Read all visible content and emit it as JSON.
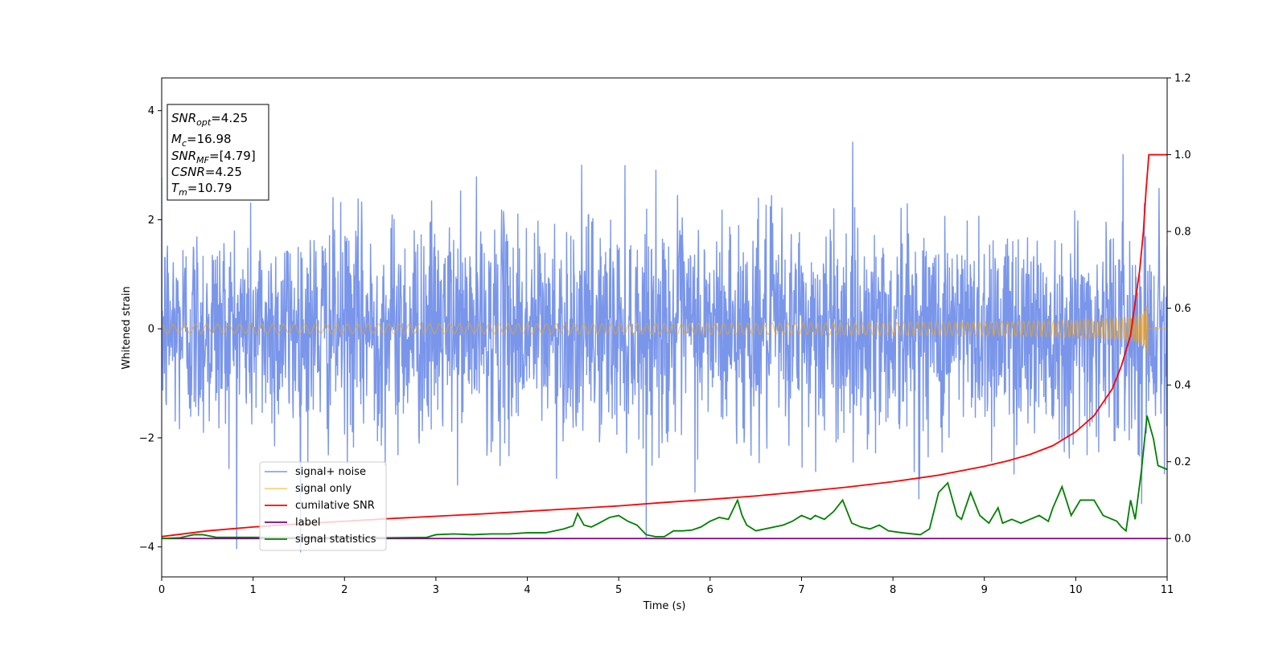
{
  "chart_data": {
    "type": "line",
    "xlabel": "Time (s)",
    "ylabel_left": "Whitened strain",
    "ylabel_right": "",
    "xlim": [
      0,
      11
    ],
    "ylim_left": [
      -4.55,
      4.6
    ],
    "ylim_right": [
      -0.1,
      1.2
    ],
    "x_ticks": [
      "0",
      "1",
      "2",
      "3",
      "4",
      "5",
      "6",
      "7",
      "8",
      "9",
      "10",
      "11"
    ],
    "y_left_ticks": [
      "4",
      "2",
      "0",
      "−2",
      "−4"
    ],
    "y_right_ticks": [
      "1.2",
      "1.0",
      "0.8",
      "0.6",
      "0.4",
      "0.2",
      "0.0"
    ],
    "legend_position": "lower-left",
    "legend": [
      {
        "label": "signal+ noise",
        "color": "#4169e1"
      },
      {
        "label": "signal only",
        "color": "#ffa500"
      },
      {
        "label": "cumilative SNR",
        "color": "#ff0000"
      },
      {
        "label": "label",
        "color": "#800080"
      },
      {
        "label": "signal statistics",
        "color": "#008000"
      }
    ],
    "info_box": {
      "snr_opt": {
        "sym": "SNR",
        "sub": "opt",
        "value": "=4.25"
      },
      "mc": {
        "sym": "M",
        "sub": "c",
        "value": "=16.98"
      },
      "snr_mf": {
        "sym": "SNR",
        "sub": "MF",
        "value": "=[4.79]"
      },
      "csnr": {
        "sym": "CSNR",
        "value": "=4.25"
      },
      "tm": {
        "sym": "T",
        "sub": "m",
        "value": "=10.79"
      }
    },
    "series": [
      {
        "name": "signal+ noise",
        "axis": "left",
        "color": "#4169e1",
        "style": "noise",
        "std": 1.0,
        "x_range": [
          0,
          11
        ]
      },
      {
        "name": "signal only",
        "axis": "left",
        "color": "#ffa500",
        "style": "chirp",
        "merger_time": 10.79,
        "peak_amplitude": 1.0
      },
      {
        "name": "cumilative SNR",
        "axis": "right",
        "color": "#ff0000",
        "x": [
          0,
          0.5,
          1,
          1.5,
          2,
          2.5,
          3,
          3.5,
          4,
          4.5,
          5,
          5.5,
          6,
          6.5,
          7,
          7.5,
          8,
          8.5,
          9,
          9.25,
          9.5,
          9.75,
          10,
          10.2,
          10.4,
          10.5,
          10.6,
          10.7,
          10.74,
          10.77,
          10.79,
          10.8,
          11
        ],
        "y": [
          0.005,
          0.02,
          0.03,
          0.038,
          0.045,
          0.052,
          0.058,
          0.064,
          0.071,
          0.078,
          0.085,
          0.094,
          0.102,
          0.111,
          0.122,
          0.134,
          0.148,
          0.165,
          0.188,
          0.202,
          0.219,
          0.242,
          0.278,
          0.32,
          0.39,
          0.45,
          0.53,
          0.7,
          0.8,
          0.91,
          0.97,
          1.0,
          1.0
        ]
      },
      {
        "name": "label",
        "axis": "right",
        "color": "#800080",
        "x": [
          0,
          11
        ],
        "y": [
          0.0,
          0.0
        ]
      },
      {
        "name": "signal statistics",
        "axis": "right",
        "color": "#008000",
        "x": [
          0,
          0.2,
          0.35,
          0.45,
          0.6,
          1.0,
          1.5,
          2.0,
          2.5,
          2.9,
          3.0,
          3.2,
          3.4,
          3.6,
          3.8,
          4.0,
          4.2,
          4.4,
          4.5,
          4.55,
          4.62,
          4.7,
          4.8,
          4.9,
          5.0,
          5.1,
          5.2,
          5.3,
          5.4,
          5.5,
          5.6,
          5.7,
          5.8,
          5.9,
          6.0,
          6.1,
          6.2,
          6.3,
          6.35,
          6.4,
          6.5,
          6.8,
          6.9,
          7.0,
          7.1,
          7.15,
          7.25,
          7.35,
          7.45,
          7.55,
          7.65,
          7.75,
          7.85,
          7.95,
          8.1,
          8.3,
          8.4,
          8.5,
          8.6,
          8.7,
          8.75,
          8.85,
          8.95,
          9.05,
          9.15,
          9.2,
          9.3,
          9.4,
          9.5,
          9.6,
          9.7,
          9.75,
          9.85,
          9.95,
          10.05,
          10.2,
          10.3,
          10.4,
          10.45,
          10.5,
          10.55,
          10.6,
          10.65,
          10.72,
          10.78,
          10.85,
          10.9,
          11.0
        ],
        "y": [
          0.0,
          0.002,
          0.01,
          0.01,
          0.003,
          0.003,
          0.002,
          0.002,
          0.002,
          0.003,
          0.01,
          0.012,
          0.01,
          0.012,
          0.012,
          0.015,
          0.015,
          0.025,
          0.033,
          0.065,
          0.035,
          0.03,
          0.042,
          0.055,
          0.06,
          0.045,
          0.035,
          0.01,
          0.005,
          0.005,
          0.02,
          0.02,
          0.022,
          0.03,
          0.045,
          0.055,
          0.05,
          0.1,
          0.06,
          0.035,
          0.02,
          0.035,
          0.045,
          0.06,
          0.05,
          0.06,
          0.05,
          0.07,
          0.1,
          0.04,
          0.03,
          0.025,
          0.035,
          0.02,
          0.015,
          0.01,
          0.025,
          0.12,
          0.145,
          0.06,
          0.05,
          0.12,
          0.06,
          0.04,
          0.08,
          0.04,
          0.05,
          0.04,
          0.05,
          0.06,
          0.045,
          0.08,
          0.135,
          0.06,
          0.1,
          0.1,
          0.06,
          0.05,
          0.045,
          0.03,
          0.02,
          0.1,
          0.05,
          0.18,
          0.32,
          0.26,
          0.19,
          0.18
        ]
      }
    ]
  }
}
